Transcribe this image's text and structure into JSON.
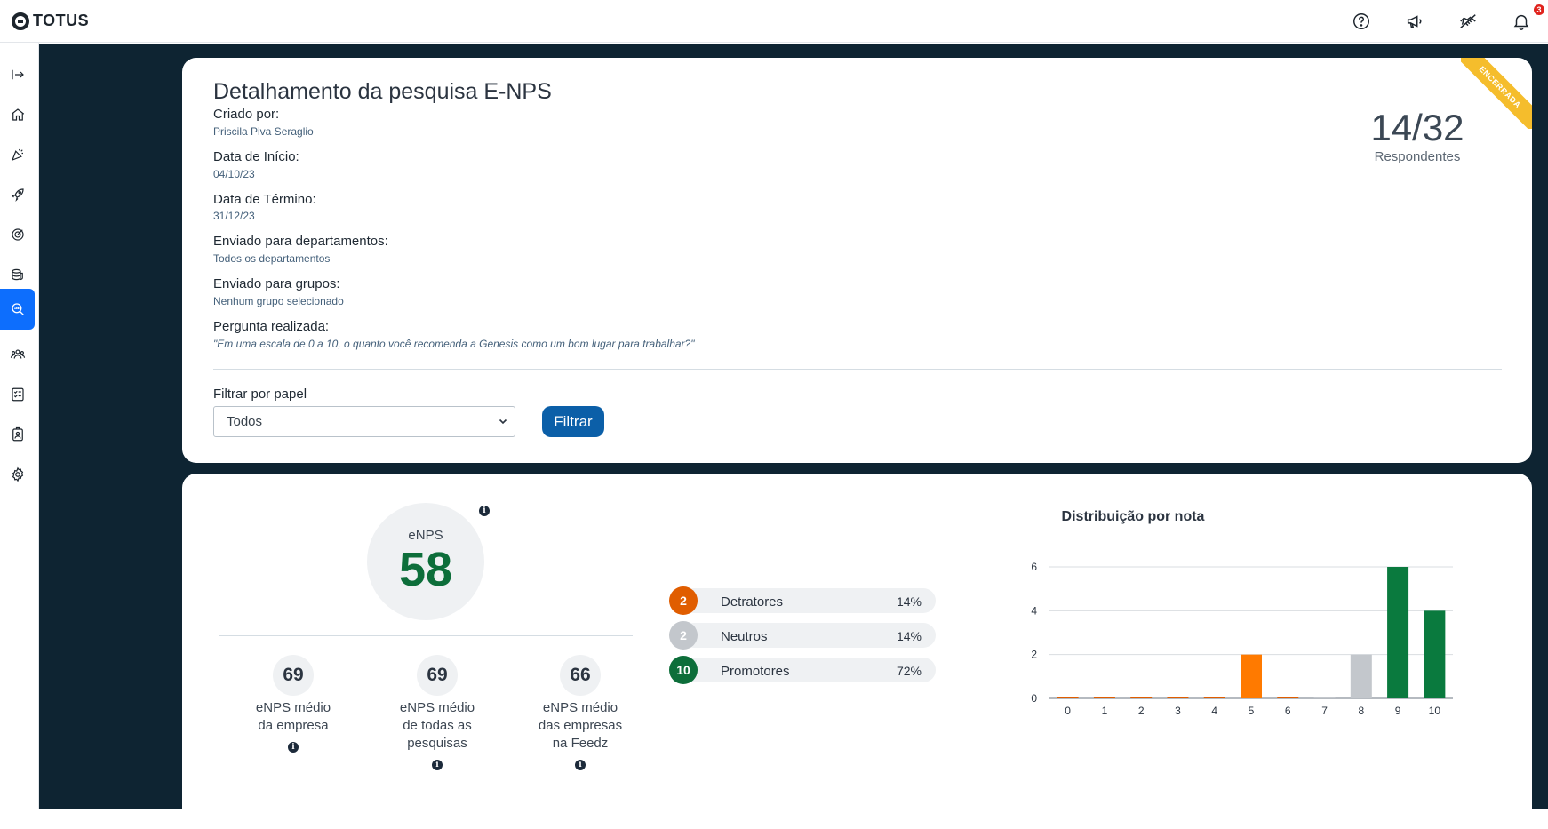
{
  "app": {
    "brand": "TOTUS",
    "notifications_count": "3"
  },
  "header_icons": [
    "help-icon",
    "megaphone-icon",
    "handshake-icon",
    "bell-icon"
  ],
  "sidebar": {
    "items": [
      {
        "name": "collapse-icon"
      },
      {
        "name": "home-icon"
      },
      {
        "name": "celebration-icon"
      },
      {
        "name": "rocket-icon"
      },
      {
        "name": "target-icon"
      },
      {
        "name": "coins-icon"
      },
      {
        "name": "search-analytics-icon",
        "active": true
      },
      {
        "name": "people-icon"
      },
      {
        "name": "checklist-icon"
      },
      {
        "name": "badge-icon"
      },
      {
        "name": "gear-icon"
      }
    ]
  },
  "survey": {
    "title": "Detalhamento da pesquisa E-NPS",
    "status_ribbon": "ENCERRADA",
    "fields": [
      {
        "label": "Criado por:",
        "value": "Priscila Piva Seraglio"
      },
      {
        "label": "Data de Início:",
        "value": "04/10/23"
      },
      {
        "label": "Data de Término:",
        "value": "31/12/23"
      },
      {
        "label": "Enviado para departamentos:",
        "value": "Todos os departamentos"
      },
      {
        "label": "Enviado para grupos:",
        "value": "Nenhum grupo selecionado"
      },
      {
        "label": "Pergunta realizada:",
        "value": "\"Em uma escala de 0 a 10, o quanto você recomenda a Genesis como um bom lugar para trabalhar?\""
      }
    ],
    "respondents_count": "14/32",
    "respondents_label": "Respondentes",
    "filter": {
      "label": "Filtrar por papel",
      "selected": "Todos",
      "button_label": "Filtrar"
    }
  },
  "results": {
    "enps_label": "eNPS",
    "enps_value": "58",
    "averages": [
      {
        "value": "69",
        "lines": [
          "eNPS médio",
          "da empresa"
        ]
      },
      {
        "value": "69",
        "lines": [
          "eNPS médio",
          "de todas as",
          "pesquisas"
        ]
      },
      {
        "value": "66",
        "lines": [
          "eNPS médio",
          "das empresas",
          "na Feedz"
        ]
      }
    ],
    "categories": [
      {
        "count": "2",
        "name": "Detratores",
        "pct": "14%",
        "color": "#e05d00"
      },
      {
        "count": "2",
        "name": "Neutros",
        "pct": "14%",
        "color": "#c3c7cc"
      },
      {
        "count": "10",
        "name": "Promotores",
        "pct": "72%",
        "color": "#0d6e3a"
      }
    ]
  },
  "chart_data": {
    "type": "bar",
    "title": "Distribuição por nota",
    "categories": [
      "0",
      "1",
      "2",
      "3",
      "4",
      "5",
      "6",
      "7",
      "8",
      "9",
      "10"
    ],
    "values": [
      0,
      0,
      0,
      0,
      0,
      2,
      0,
      0,
      2,
      6,
      4
    ],
    "colors": [
      "#e05d00",
      "#e05d00",
      "#e05d00",
      "#e05d00",
      "#e05d00",
      "#ff7a00",
      "#e05d00",
      "#c3c7cc",
      "#c3c7cc",
      "#0a7a3e",
      "#0a7a3e"
    ],
    "ylim": [
      0,
      6
    ],
    "yticks": [
      0,
      2,
      4,
      6
    ],
    "grid": true,
    "legend": "none"
  }
}
